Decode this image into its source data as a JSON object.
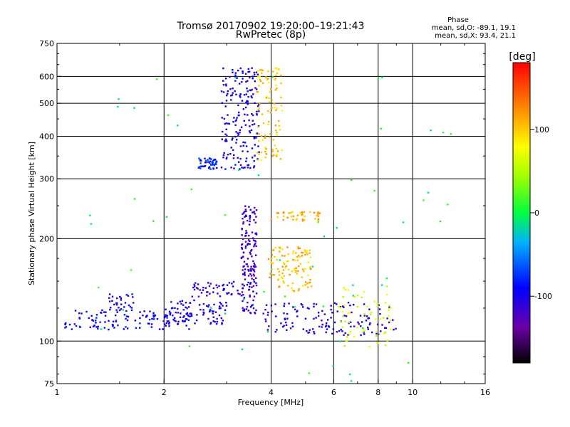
{
  "chart_data": {
    "type": "scatter",
    "title": "Tromsø 20170902 19:20:00–19:21:43",
    "subtitle": "RwPretec (8p)",
    "xlabel": "Frequency [MHz]",
    "ylabel": "Stationary phase Virtual Height [km]",
    "x_scale": "log",
    "y_scale": "log",
    "xlim": [
      1,
      16
    ],
    "ylim": [
      75,
      750
    ],
    "x_ticks": [
      "1",
      "2",
      "4",
      "6",
      "8",
      "10",
      "16"
    ],
    "y_ticks": [
      "75",
      "100",
      "200",
      "300",
      "400",
      "500",
      "600",
      "750"
    ],
    "grid": true,
    "phase_box": {
      "title": "Phase",
      "line_o": "mean, sd,O: -89.1, 19.1",
      "line_x": "mean, sd,X: 93.4, 21.1"
    },
    "colorbar": {
      "unit": "[deg]",
      "ticks": [
        "100",
        "0",
        "-100"
      ],
      "range": [
        -180,
        180
      ],
      "colormap": "rainbow"
    },
    "point_groups": [
      {
        "name": "low E trace",
        "phase": -95,
        "x_range": [
          1.05,
          2.4
        ],
        "y_range": [
          108,
          124
        ],
        "count": 130
      },
      {
        "name": "E trace hump",
        "phase": -100,
        "x_range": [
          1.4,
          1.65
        ],
        "y_range": [
          122,
          138
        ],
        "count": 30
      },
      {
        "name": "mid trace",
        "phase": -105,
        "x_range": [
          2.0,
          3.0
        ],
        "y_range": [
          112,
          132
        ],
        "count": 80
      },
      {
        "name": "E upper",
        "phase": -110,
        "x_range": [
          2.4,
          3.4
        ],
        "y_range": [
          135,
          150
        ],
        "count": 50
      },
      {
        "name": "F1 column",
        "phase": -115,
        "x_range": [
          3.3,
          3.65
        ],
        "y_range": [
          120,
          250
        ],
        "count": 160
      },
      {
        "name": "O-mode F cusp",
        "phase": -100,
        "x_range": [
          2.9,
          3.7
        ],
        "y_range": [
          320,
          640
        ],
        "count": 190
      },
      {
        "name": "low cluster cyan",
        "phase": -80,
        "x_range": [
          2.5,
          2.85
        ],
        "y_range": [
          320,
          345
        ],
        "count": 50
      },
      {
        "name": "X-mode F cusp",
        "phase": 100,
        "x_range": [
          3.65,
          4.3
        ],
        "y_range": [
          340,
          640
        ],
        "count": 100
      },
      {
        "name": "X mid column",
        "phase": 105,
        "x_range": [
          3.9,
          5.2
        ],
        "y_range": [
          140,
          190
        ],
        "count": 110
      },
      {
        "name": "X upper band",
        "phase": 110,
        "x_range": [
          4.0,
          5.5
        ],
        "y_range": [
          225,
          240
        ],
        "count": 40
      },
      {
        "name": "sporadic E",
        "phase": -105,
        "x_range": [
          3.8,
          9.0
        ],
        "y_range": [
          104,
          130
        ],
        "count": 140
      },
      {
        "name": "green-yellow patch",
        "phase": 60,
        "x_range": [
          6.2,
          8.8
        ],
        "y_range": [
          95,
          145
        ],
        "count": 60
      },
      {
        "name": "scattered",
        "phase": 0,
        "x_range": [
          1.1,
          13.0
        ],
        "y_range": [
          76,
          600
        ],
        "count": 60
      }
    ]
  }
}
